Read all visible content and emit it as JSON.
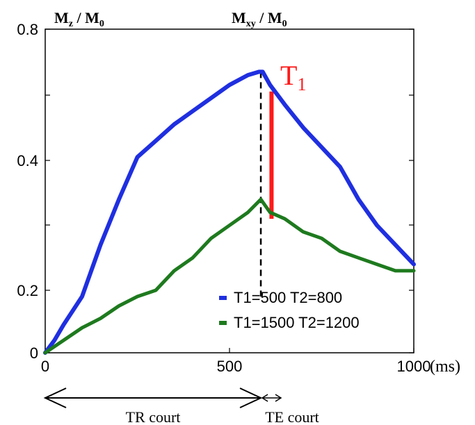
{
  "chart_data": {
    "type": "line",
    "top_labels": {
      "left": {
        "main": "M",
        "sub": "z",
        "sep": " / ",
        "main2": "M",
        "sub2": "0"
      },
      "center": {
        "main": "M",
        "sub": "xy",
        "sep": " / ",
        "main2": "M",
        "sub2": "0"
      }
    },
    "x_unit_label": "(ms)",
    "xlim": [
      0,
      1000
    ],
    "x_ticks": [
      {
        "value": 0,
        "label": "0"
      },
      {
        "value": 500,
        "label": "500"
      },
      {
        "value": 1000,
        "label": "1000"
      }
    ],
    "y_ticks": [
      {
        "value": 0,
        "label": "0"
      },
      {
        "value": 0.2,
        "label": "0.2"
      },
      {
        "value": 0.4,
        "label": "0.4"
      },
      {
        "value": 0.8,
        "label": "0.8"
      }
    ],
    "series": [
      {
        "name": "T1=500 T2=800",
        "color": "#1f2fe0",
        "points": [
          [
            0,
            0
          ],
          [
            25,
            0.04
          ],
          [
            50,
            0.09
          ],
          [
            100,
            0.18
          ],
          [
            150,
            0.27
          ],
          [
            200,
            0.34
          ],
          [
            250,
            0.41
          ],
          [
            300,
            0.46
          ],
          [
            350,
            0.51
          ],
          [
            400,
            0.55
          ],
          [
            450,
            0.59
          ],
          [
            500,
            0.63
          ],
          [
            550,
            0.66
          ],
          [
            580,
            0.67
          ],
          [
            590,
            0.67
          ],
          [
            610,
            0.63
          ],
          [
            650,
            0.57
          ],
          [
            700,
            0.5
          ],
          [
            750,
            0.44
          ],
          [
            800,
            0.39
          ],
          [
            850,
            0.34
          ],
          [
            900,
            0.3
          ],
          [
            950,
            0.27
          ],
          [
            1000,
            0.24
          ]
        ]
      },
      {
        "name": "T1=1500 T2=1200",
        "color": "#1e7a1e",
        "points": [
          [
            0,
            0
          ],
          [
            50,
            0.04
          ],
          [
            100,
            0.08
          ],
          [
            150,
            0.11
          ],
          [
            200,
            0.15
          ],
          [
            250,
            0.18
          ],
          [
            300,
            0.2
          ],
          [
            350,
            0.23
          ],
          [
            400,
            0.25
          ],
          [
            450,
            0.28
          ],
          [
            500,
            0.3
          ],
          [
            550,
            0.32
          ],
          [
            585,
            0.34
          ],
          [
            610,
            0.32
          ],
          [
            650,
            0.31
          ],
          [
            700,
            0.29
          ],
          [
            750,
            0.28
          ],
          [
            800,
            0.26
          ],
          [
            850,
            0.25
          ],
          [
            900,
            0.24
          ],
          [
            950,
            0.23
          ],
          [
            1000,
            0.23
          ]
        ]
      }
    ],
    "legend": {
      "placement": "bottom-right"
    },
    "annotations": {
      "te_marker": {
        "x": 585,
        "y_low": 0.18,
        "y_high": 0.67,
        "color": "#000000"
      },
      "t1_difference": {
        "x": 614,
        "y_low": 0.31,
        "y_high": 0.61,
        "color": "#ff1a1a",
        "label_main": "T",
        "label_sub": "1"
      },
      "tr_arrow": {
        "from": 0,
        "to": 585,
        "label": "TR court"
      },
      "te_arrow": {
        "from": 585,
        "to": 640,
        "label": "TE court"
      }
    }
  }
}
